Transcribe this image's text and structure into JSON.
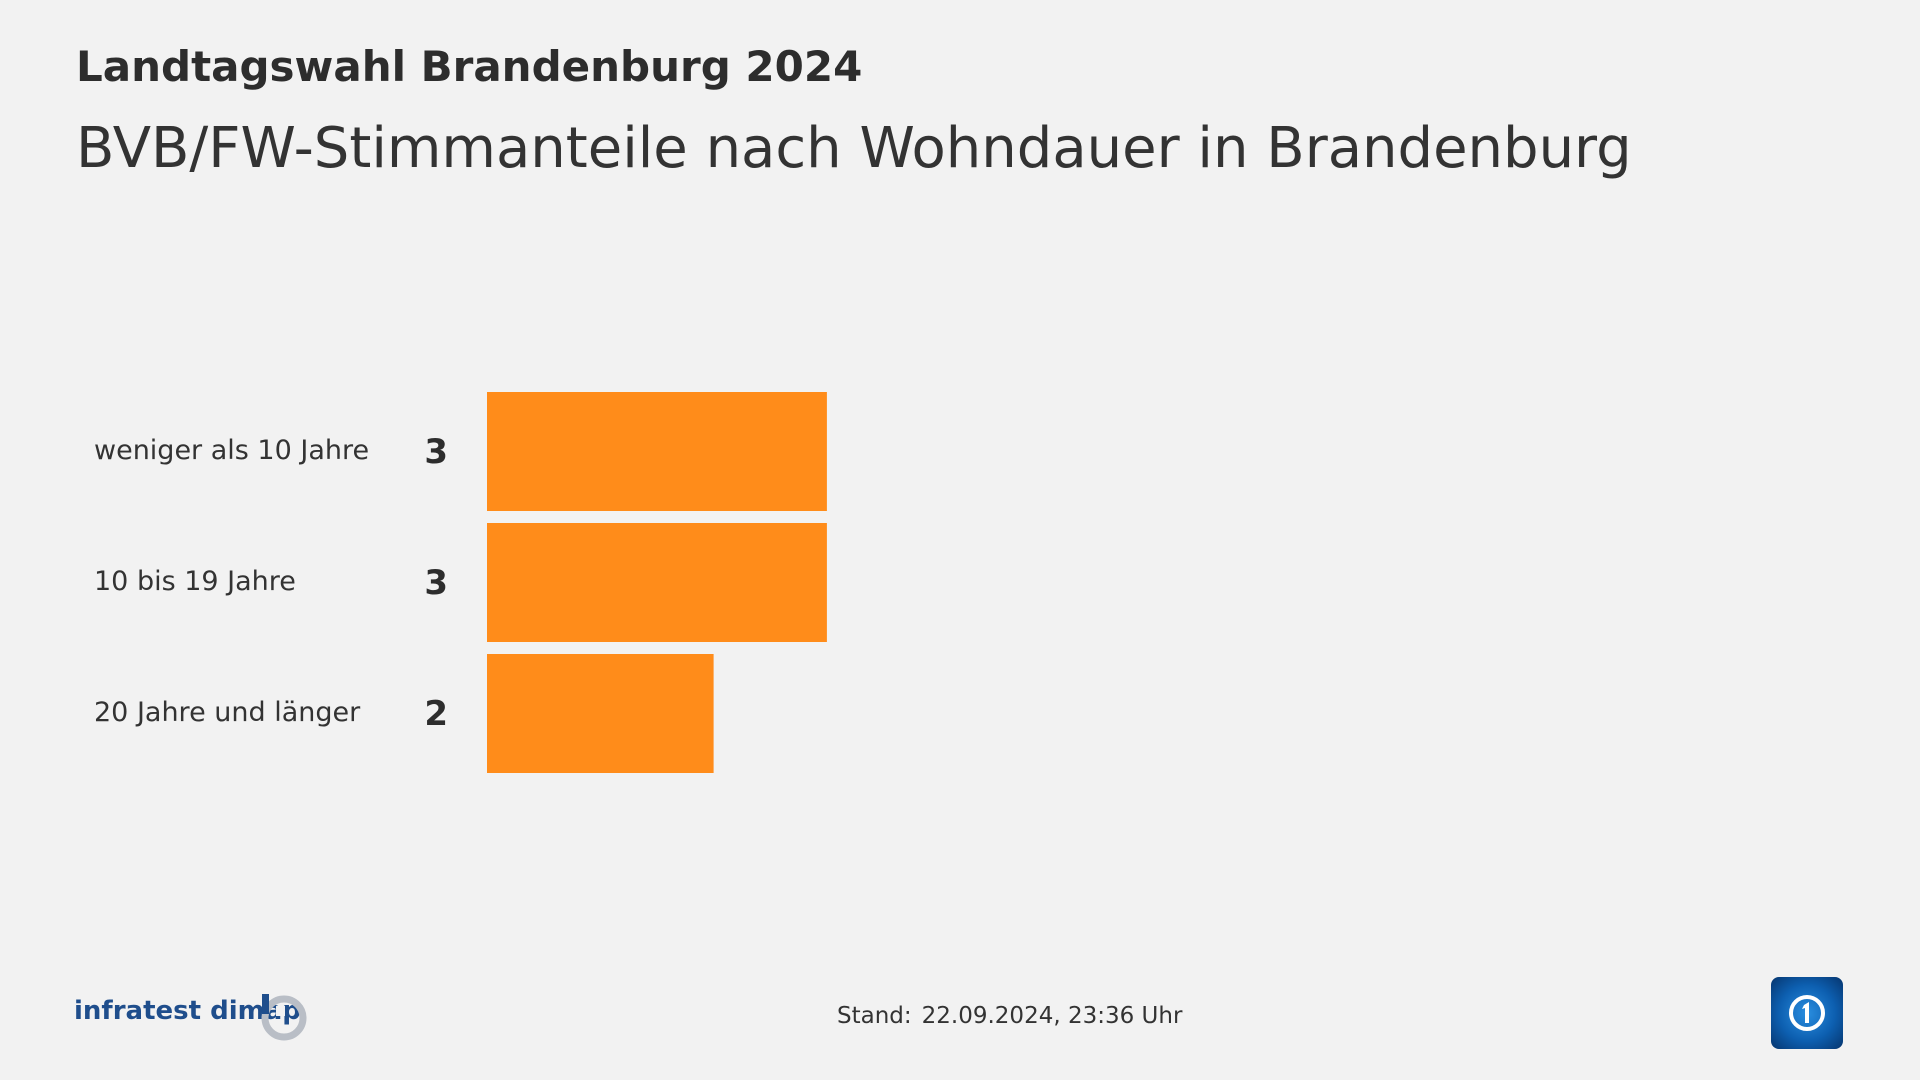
{
  "header": {
    "supertitle": "Landtagswahl Brandenburg 2024",
    "title": "BVB/FW-Stimmanteile nach Wohndauer in Brandenburg"
  },
  "chart_data": {
    "type": "bar",
    "orientation": "horizontal",
    "categories": [
      "weniger als 10 Jahre",
      "10 bis 19 Jahre",
      "20 Jahre und länger"
    ],
    "values": [
      3,
      3,
      2
    ],
    "value_labels": [
      "3",
      "3",
      "2"
    ],
    "title": "BVB/FW-Stimmanteile nach Wohndauer in Brandenburg",
    "xlabel": "",
    "ylabel": "",
    "xlim": [
      0,
      10
    ],
    "bar_color": "#ff8c1a",
    "grid": false,
    "legend": "none"
  },
  "footer": {
    "source": "infratest dimap",
    "stand_label": "Stand:",
    "stand_value": "22.09.2024, 23:36 Uhr",
    "logo_source_icon": "infratest-dimap-logo-icon",
    "logo_broadcaster_icon": "ard-logo-icon"
  },
  "colors": {
    "background": "#f2f2f2",
    "bar": "#ff8c1a",
    "text": "#333333",
    "source_blue": "#1f4e8c"
  }
}
